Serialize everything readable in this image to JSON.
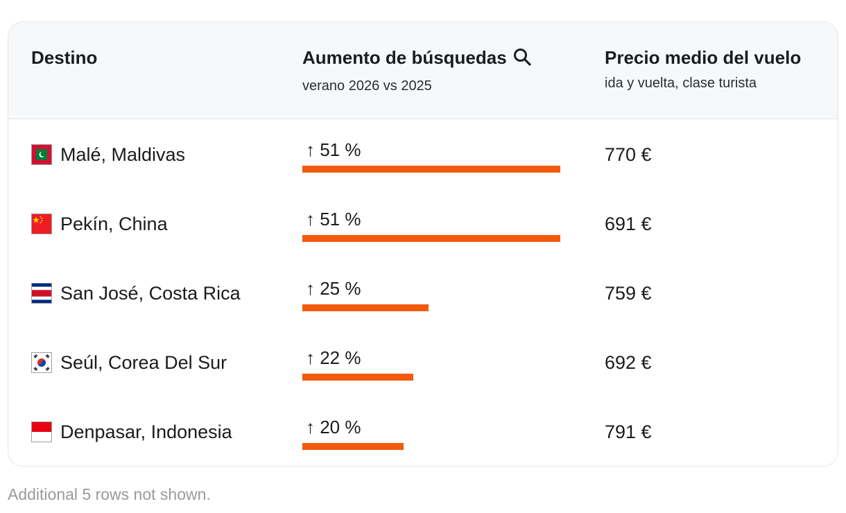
{
  "table": {
    "headers": {
      "destination": "Destino",
      "increase": {
        "title": "Aumento de búsquedas",
        "subtitle": "verano 2026 vs 2025",
        "icon": "search-icon"
      },
      "price": {
        "title": "Precio medio del vuelo",
        "subtitle": "ida y vuelta, clase turista"
      }
    },
    "rows": [
      {
        "flag": "maldives-flag-icon",
        "destination": "Malé, Maldivas",
        "increase_label": "↑ 51 %",
        "increase_pct": 51,
        "price": "770 €"
      },
      {
        "flag": "china-flag-icon",
        "destination": "Pekín, China",
        "increase_label": "↑ 51 %",
        "increase_pct": 51,
        "price": "691 €"
      },
      {
        "flag": "costa-rica-flag-icon",
        "destination": "San José, Costa Rica",
        "increase_label": "↑ 25 %",
        "increase_pct": 25,
        "price": "759 €"
      },
      {
        "flag": "south-korea-flag-icon",
        "destination": "Seúl, Corea Del Sur",
        "increase_label": "↑ 22 %",
        "increase_pct": 22,
        "price": "692 €"
      },
      {
        "flag": "indonesia-flag-icon",
        "destination": "Denpasar, Indonesia",
        "increase_label": "↑ 20 %",
        "increase_pct": 20,
        "price": "791 €"
      }
    ],
    "bar_color": "#f25a0c"
  },
  "footnote": "Additional 5 rows not shown."
}
